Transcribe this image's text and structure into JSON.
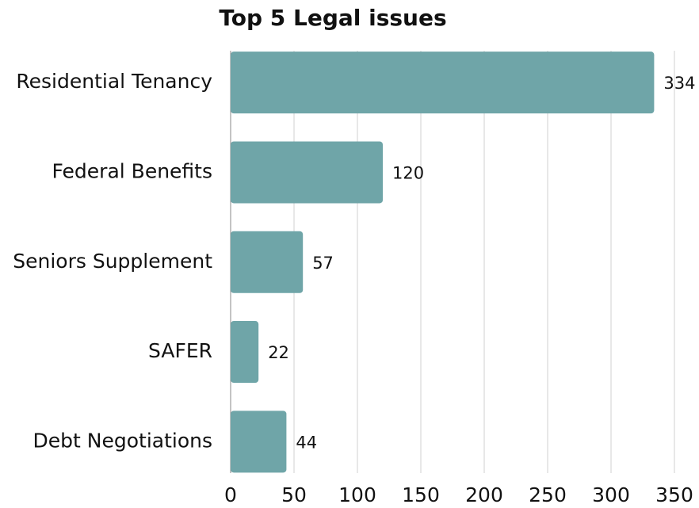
{
  "chart_data": {
    "type": "bar",
    "orientation": "horizontal",
    "title": "Top 5 Legal issues",
    "categories": [
      "Residential Tenancy",
      "Federal Benefits",
      "Seniors Supplement",
      "SAFER",
      "Debt Negotiations"
    ],
    "values": [
      334,
      120,
      57,
      22,
      44
    ],
    "color": "#6fa5a8",
    "xlim": [
      0,
      350
    ],
    "xticks": [
      0,
      50,
      100,
      150,
      200,
      250,
      300,
      350
    ],
    "grid": true
  }
}
